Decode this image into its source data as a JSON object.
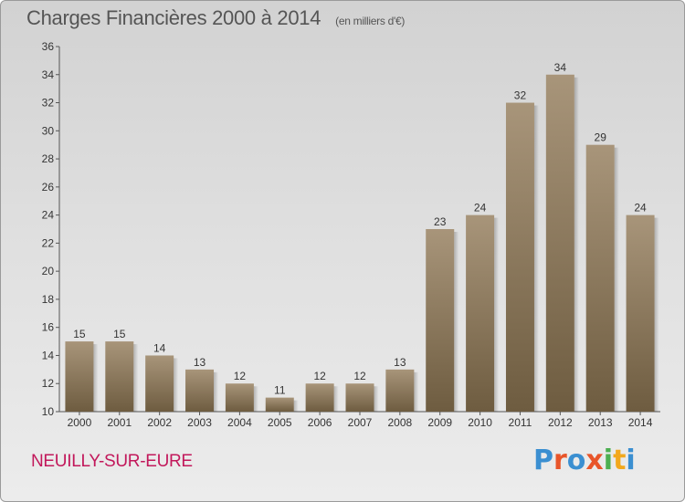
{
  "header": {
    "title": "Charges Financières 2000 à 2014",
    "subtitle": "(en milliers d'€)"
  },
  "footer": {
    "commune": "NEUILLY-SUR-EURE",
    "logo_text": "Proxiti"
  },
  "colors": {
    "bar_light": "#a8957a",
    "bar_dark": "#6e5c40",
    "commune_text": "#c2185b"
  },
  "chart_data": {
    "type": "bar",
    "title": "Charges Financières 2000 à 2014",
    "subtitle": "(en milliers d'€)",
    "xlabel": "",
    "ylabel": "",
    "categories": [
      "2000",
      "2001",
      "2002",
      "2003",
      "2004",
      "2005",
      "2006",
      "2007",
      "2008",
      "2009",
      "2010",
      "2011",
      "2012",
      "2013",
      "2014"
    ],
    "values": [
      15,
      15,
      14,
      13,
      12,
      11,
      12,
      12,
      13,
      23,
      24,
      32,
      34,
      29,
      24
    ],
    "ylim": [
      10,
      36
    ],
    "yticks": [
      10,
      12,
      14,
      16,
      18,
      20,
      22,
      24,
      26,
      28,
      30,
      32,
      34,
      36
    ],
    "grid": false,
    "legend": "none"
  }
}
